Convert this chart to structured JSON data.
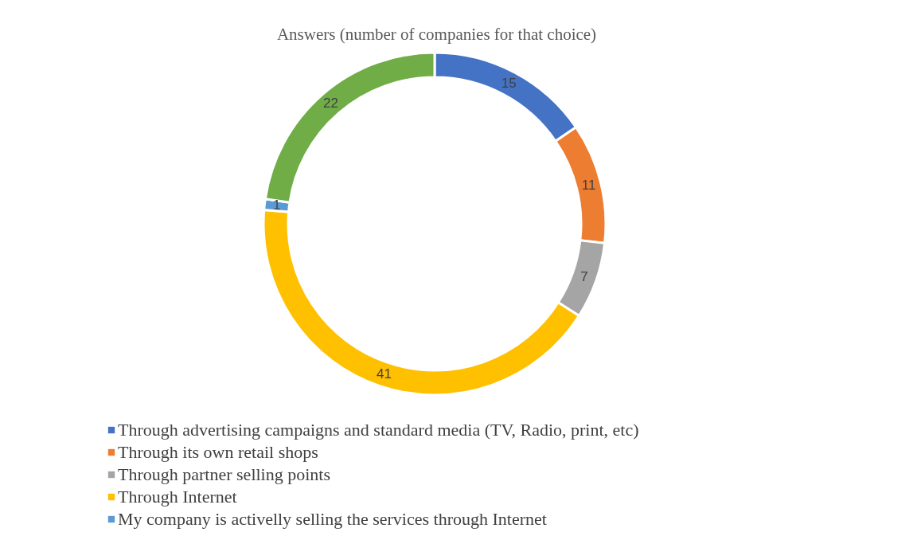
{
  "chart_data": {
    "type": "donut",
    "title": "Answers (number of companies for that choice)",
    "categories": [
      "Through  advertising campaigns  and  standard media (TV, Radio, print, etc)",
      "Through  its own retail shops",
      "Through  partner  selling  points",
      "Through Internet",
      "My  company  is activelly  selling the services through Internet",
      null
    ],
    "values": [
      15,
      11,
      7,
      41,
      1,
      22
    ],
    "colors": [
      "#4472c4",
      "#ed7d31",
      "#a5a5a5",
      "#ffc000",
      "#5b9bd5",
      "#70ad47"
    ],
    "data_labels": true,
    "legend": "bottom"
  }
}
